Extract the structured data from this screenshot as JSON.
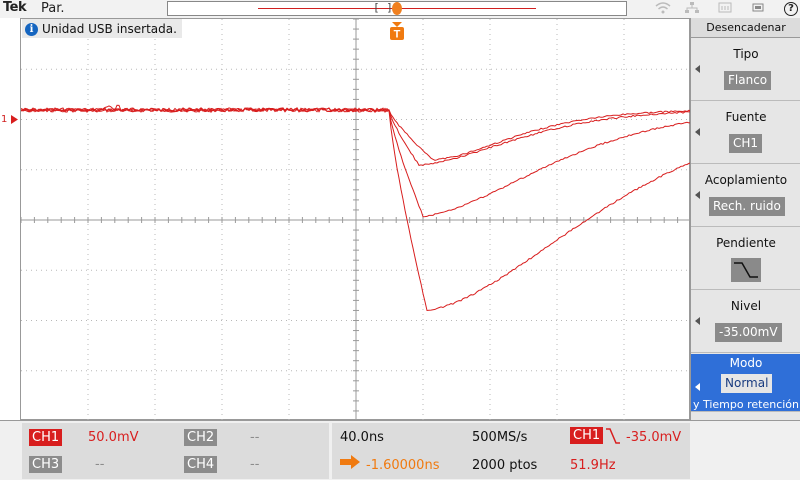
{
  "topbar": {
    "brand": "Tek",
    "run_state": "Par.",
    "record_window": "[  ]"
  },
  "notice": {
    "icon": "info-icon",
    "text": "Unidad USB insertada."
  },
  "markers": {
    "trigger_letter": "T",
    "ch1_ground": "1"
  },
  "side_menu": {
    "title": "Desencadenar",
    "items": [
      {
        "label": "Tipo",
        "value": "Flanco"
      },
      {
        "label": "Fuente",
        "value": "CH1"
      },
      {
        "label": "Acoplamiento",
        "value": "Rech. ruido"
      },
      {
        "label": "Pendiente",
        "value": "falling-edge-icon"
      },
      {
        "label": "Nivel",
        "value": "-35.00mV"
      },
      {
        "label": "Modo",
        "value": "Normal",
        "sub": "y Tiempo retención"
      }
    ]
  },
  "channels": {
    "ch1": {
      "label": "CH1",
      "scale": "50.0mV"
    },
    "ch2": {
      "label": "CH2",
      "scale": "--"
    },
    "ch3": {
      "label": "CH3",
      "scale": "--"
    },
    "ch4": {
      "label": "CH4",
      "scale": "--"
    }
  },
  "timebase": {
    "time_per_div": "40.0ns",
    "sample_rate": "500MS/s",
    "trigger_source": "CH1",
    "trigger_level": "-35.0mV",
    "position": "-1.60000ns",
    "record_length": "2000 ptos",
    "frequency": "51.9Hz"
  },
  "colors": {
    "trace": "#d81e1e",
    "trigger": "#f07a10",
    "menu_active": "#2f6fd8"
  }
}
